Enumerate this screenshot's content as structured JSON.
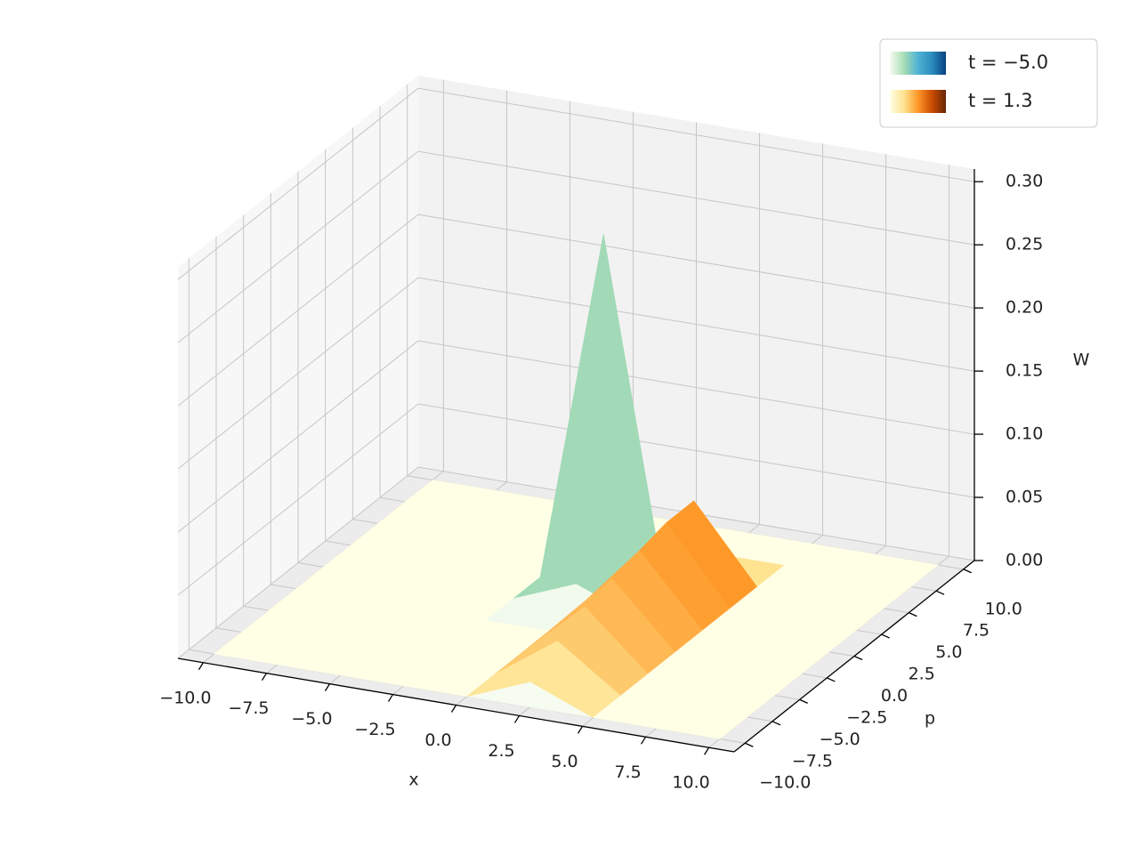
{
  "chart_data": {
    "type": "surface3d",
    "xlabel": "x",
    "ylabel": "p",
    "zlabel": "W",
    "x": [
      -10,
      -7.5,
      -5,
      -2.5,
      0,
      2.5,
      5,
      7.5,
      10
    ],
    "y": [
      -10,
      -7.5,
      -5,
      -2.5,
      0,
      2.5,
      5,
      7.5,
      10
    ],
    "xlim": [
      -11,
      11
    ],
    "ylim": [
      -11,
      11
    ],
    "zlim": [
      0,
      0.31
    ],
    "xticks": [
      {
        "value": -10,
        "label": "−10.0"
      },
      {
        "value": -7.5,
        "label": "−7.5"
      },
      {
        "value": -5,
        "label": "−5.0"
      },
      {
        "value": -2.5,
        "label": "−2.5"
      },
      {
        "value": 0,
        "label": "0.0"
      },
      {
        "value": 2.5,
        "label": "2.5"
      },
      {
        "value": 5,
        "label": "5.0"
      },
      {
        "value": 7.5,
        "label": "7.5"
      },
      {
        "value": 10,
        "label": "10.0"
      }
    ],
    "yticks": [
      {
        "value": -10,
        "label": "−10.0"
      },
      {
        "value": -7.5,
        "label": "−7.5"
      },
      {
        "value": -5,
        "label": "−5.0"
      },
      {
        "value": -2.5,
        "label": "−2.5"
      },
      {
        "value": 0,
        "label": "0.0"
      },
      {
        "value": 2.5,
        "label": "2.5"
      },
      {
        "value": 5,
        "label": "5.0"
      },
      {
        "value": 7.5,
        "label": "7.5"
      },
      {
        "value": 10,
        "label": "10.0"
      }
    ],
    "zticks": [
      {
        "value": 0,
        "label": "0.00"
      },
      {
        "value": 0.05,
        "label": "0.05"
      },
      {
        "value": 0.1,
        "label": "0.10"
      },
      {
        "value": 0.15,
        "label": "0.15"
      },
      {
        "value": 0.2,
        "label": "0.20"
      },
      {
        "value": 0.25,
        "label": "0.25"
      },
      {
        "value": 0.3,
        "label": "0.30"
      }
    ],
    "grid": true,
    "legend": "upper right",
    "series": [
      {
        "name": "t = −5.0",
        "colors": [
          "#f7fcf0",
          "#a8ddb5",
          "#4eb3d3",
          "#2b8cbe",
          "#084081"
        ],
        "values": [
          [
            0,
            0,
            0,
            0,
            0,
            0,
            0,
            0,
            0
          ],
          [
            0,
            0,
            0,
            0,
            0,
            0,
            0,
            0,
            0
          ],
          [
            0,
            0,
            0,
            0,
            0,
            0,
            0,
            0,
            0
          ],
          [
            0,
            0,
            0,
            0,
            0,
            0,
            0,
            0,
            0
          ],
          [
            0,
            0,
            0,
            0,
            0.02,
            0,
            0,
            0,
            0
          ],
          [
            0,
            0,
            0,
            0,
            0.28,
            0,
            0,
            0,
            0
          ],
          [
            0,
            0,
            0,
            0,
            0.02,
            0,
            0,
            0,
            0
          ],
          [
            0,
            0,
            0,
            0,
            0,
            0,
            0,
            0,
            0
          ],
          [
            0,
            0,
            0,
            0,
            0,
            0,
            0,
            0,
            0
          ]
        ]
      },
      {
        "name": "t = 1.3",
        "colors": [
          "#ffffe5",
          "#fee391",
          "#fe9929",
          "#cc4c02",
          "#662506"
        ],
        "values": [
          [
            0,
            0,
            0,
            0,
            0,
            0.02,
            0,
            0,
            0
          ],
          [
            0,
            0,
            0,
            0,
            0,
            0.035,
            0,
            0,
            0
          ],
          [
            0,
            0,
            0,
            0,
            0,
            0.045,
            0,
            0,
            0
          ],
          [
            0,
            0,
            0,
            0,
            0,
            0.05,
            0,
            0,
            0
          ],
          [
            0,
            0,
            0,
            0,
            0,
            0.055,
            0,
            0,
            0
          ],
          [
            0,
            0,
            0,
            0,
            0,
            0.06,
            0,
            0,
            0
          ],
          [
            0,
            0,
            0,
            0,
            0,
            0.06,
            0,
            0,
            0
          ],
          [
            0,
            0,
            0,
            0,
            0,
            0,
            0,
            0,
            0
          ],
          [
            0,
            0,
            0,
            0,
            0,
            0,
            0,
            0,
            0
          ]
        ]
      }
    ]
  }
}
